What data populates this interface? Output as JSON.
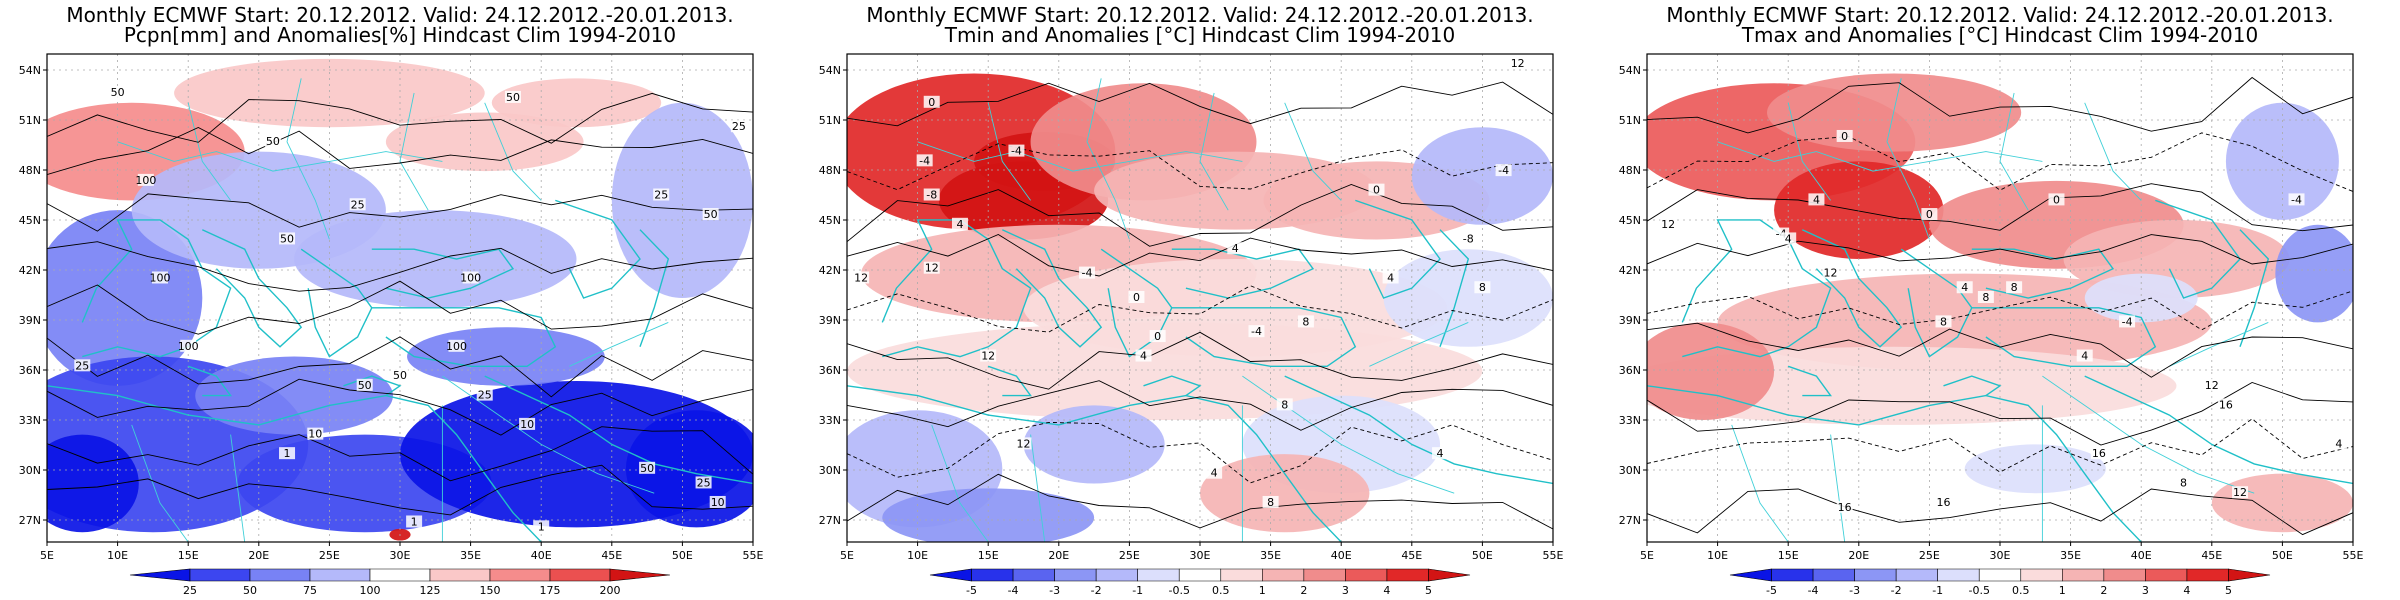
{
  "panels": [
    {
      "title_line1": "Monthly ECMWF Start: 20.12.2012. Valid: 24.12.2012.-20.01.2013.",
      "title_line2": "Pcpn[mm] and Anomalies[%] Hindcast Clim 1994-2010",
      "type": "precip",
      "colorbar_labels": [
        "25",
        "50",
        "75",
        "100",
        "125",
        "150",
        "175",
        "200"
      ],
      "colorbar_colors": [
        "#0a14e6",
        "#3c46f0",
        "#7882f5",
        "#b4b9fa",
        "#ffffff",
        "#fac8c8",
        "#f58c8c",
        "#eb5050",
        "#d21414"
      ],
      "contour_labels": [
        "100",
        "50",
        "50",
        "25",
        "50",
        "100",
        "100",
        "50",
        "25",
        "10",
        "25",
        "10",
        "1",
        "1",
        "1",
        "50",
        "100",
        "50",
        "10",
        "25",
        "50",
        "100",
        "25",
        "50",
        "25"
      ]
    },
    {
      "title_line1": "Monthly ECMWF Start: 20.12.2012. Valid: 24.12.2012.-20.01.2013.",
      "title_line2": "Tmin and Anomalies [°C] Hindcast Clim 1994-2010",
      "type": "tmin",
      "colorbar_labels": [
        "-5",
        "-4",
        "-3",
        "-2",
        "-1",
        "-0.5",
        "0.5",
        "1",
        "2",
        "3",
        "4",
        "5"
      ],
      "colorbar_colors": [
        "#0a14e6",
        "#2832eb",
        "#5a64f0",
        "#8c96f5",
        "#b4b9fa",
        "#dcdffc",
        "#ffffff",
        "#fadcdc",
        "#f5b4b4",
        "#f08c8c",
        "#eb5a5a",
        "#e12828",
        "#d21414"
      ],
      "contour_labels": [
        "12",
        "0",
        "-4",
        "-4",
        "-8",
        "4",
        "12",
        "-4",
        "0",
        "4",
        "8",
        "12",
        "4",
        "8",
        "-4",
        "4",
        "0",
        "8",
        "12",
        "4",
        "-8",
        "0",
        "8",
        "4",
        "-4",
        "12"
      ]
    },
    {
      "title_line1": "Monthly ECMWF Start: 20.12.2012. Valid: 24.12.2012.-20.01.2013.",
      "title_line2": "Tmax and Anomalies [°C] Hindcast Clim 1994-2010",
      "type": "tmax",
      "colorbar_labels": [
        "-5",
        "-4",
        "-3",
        "-2",
        "-1",
        "-0.5",
        "0.5",
        "1",
        "2",
        "3",
        "4",
        "5"
      ],
      "colorbar_colors": [
        "#0a14e6",
        "#2832eb",
        "#5a64f0",
        "#8c96f5",
        "#b4b9fa",
        "#dcdffc",
        "#ffffff",
        "#fadcdc",
        "#f5b4b4",
        "#f08c8c",
        "#eb5a5a",
        "#e12828",
        "#d21414"
      ],
      "contour_labels": [
        "0",
        "4",
        "-4",
        "12",
        "4",
        "8",
        "0",
        "12",
        "4",
        "8",
        "-4",
        "4",
        "12",
        "16",
        "16",
        "12",
        "8",
        "4",
        "16",
        "16",
        "-4",
        "8",
        "0"
      ]
    }
  ],
  "lat_labels": [
    "54N",
    "51N",
    "48N",
    "45N",
    "42N",
    "39N",
    "36N",
    "33N",
    "30N",
    "27N"
  ],
  "lon_labels": [
    "5E",
    "10E",
    "15E",
    "20E",
    "25E",
    "30E",
    "35E",
    "40E",
    "45E",
    "50E",
    "55E"
  ]
}
